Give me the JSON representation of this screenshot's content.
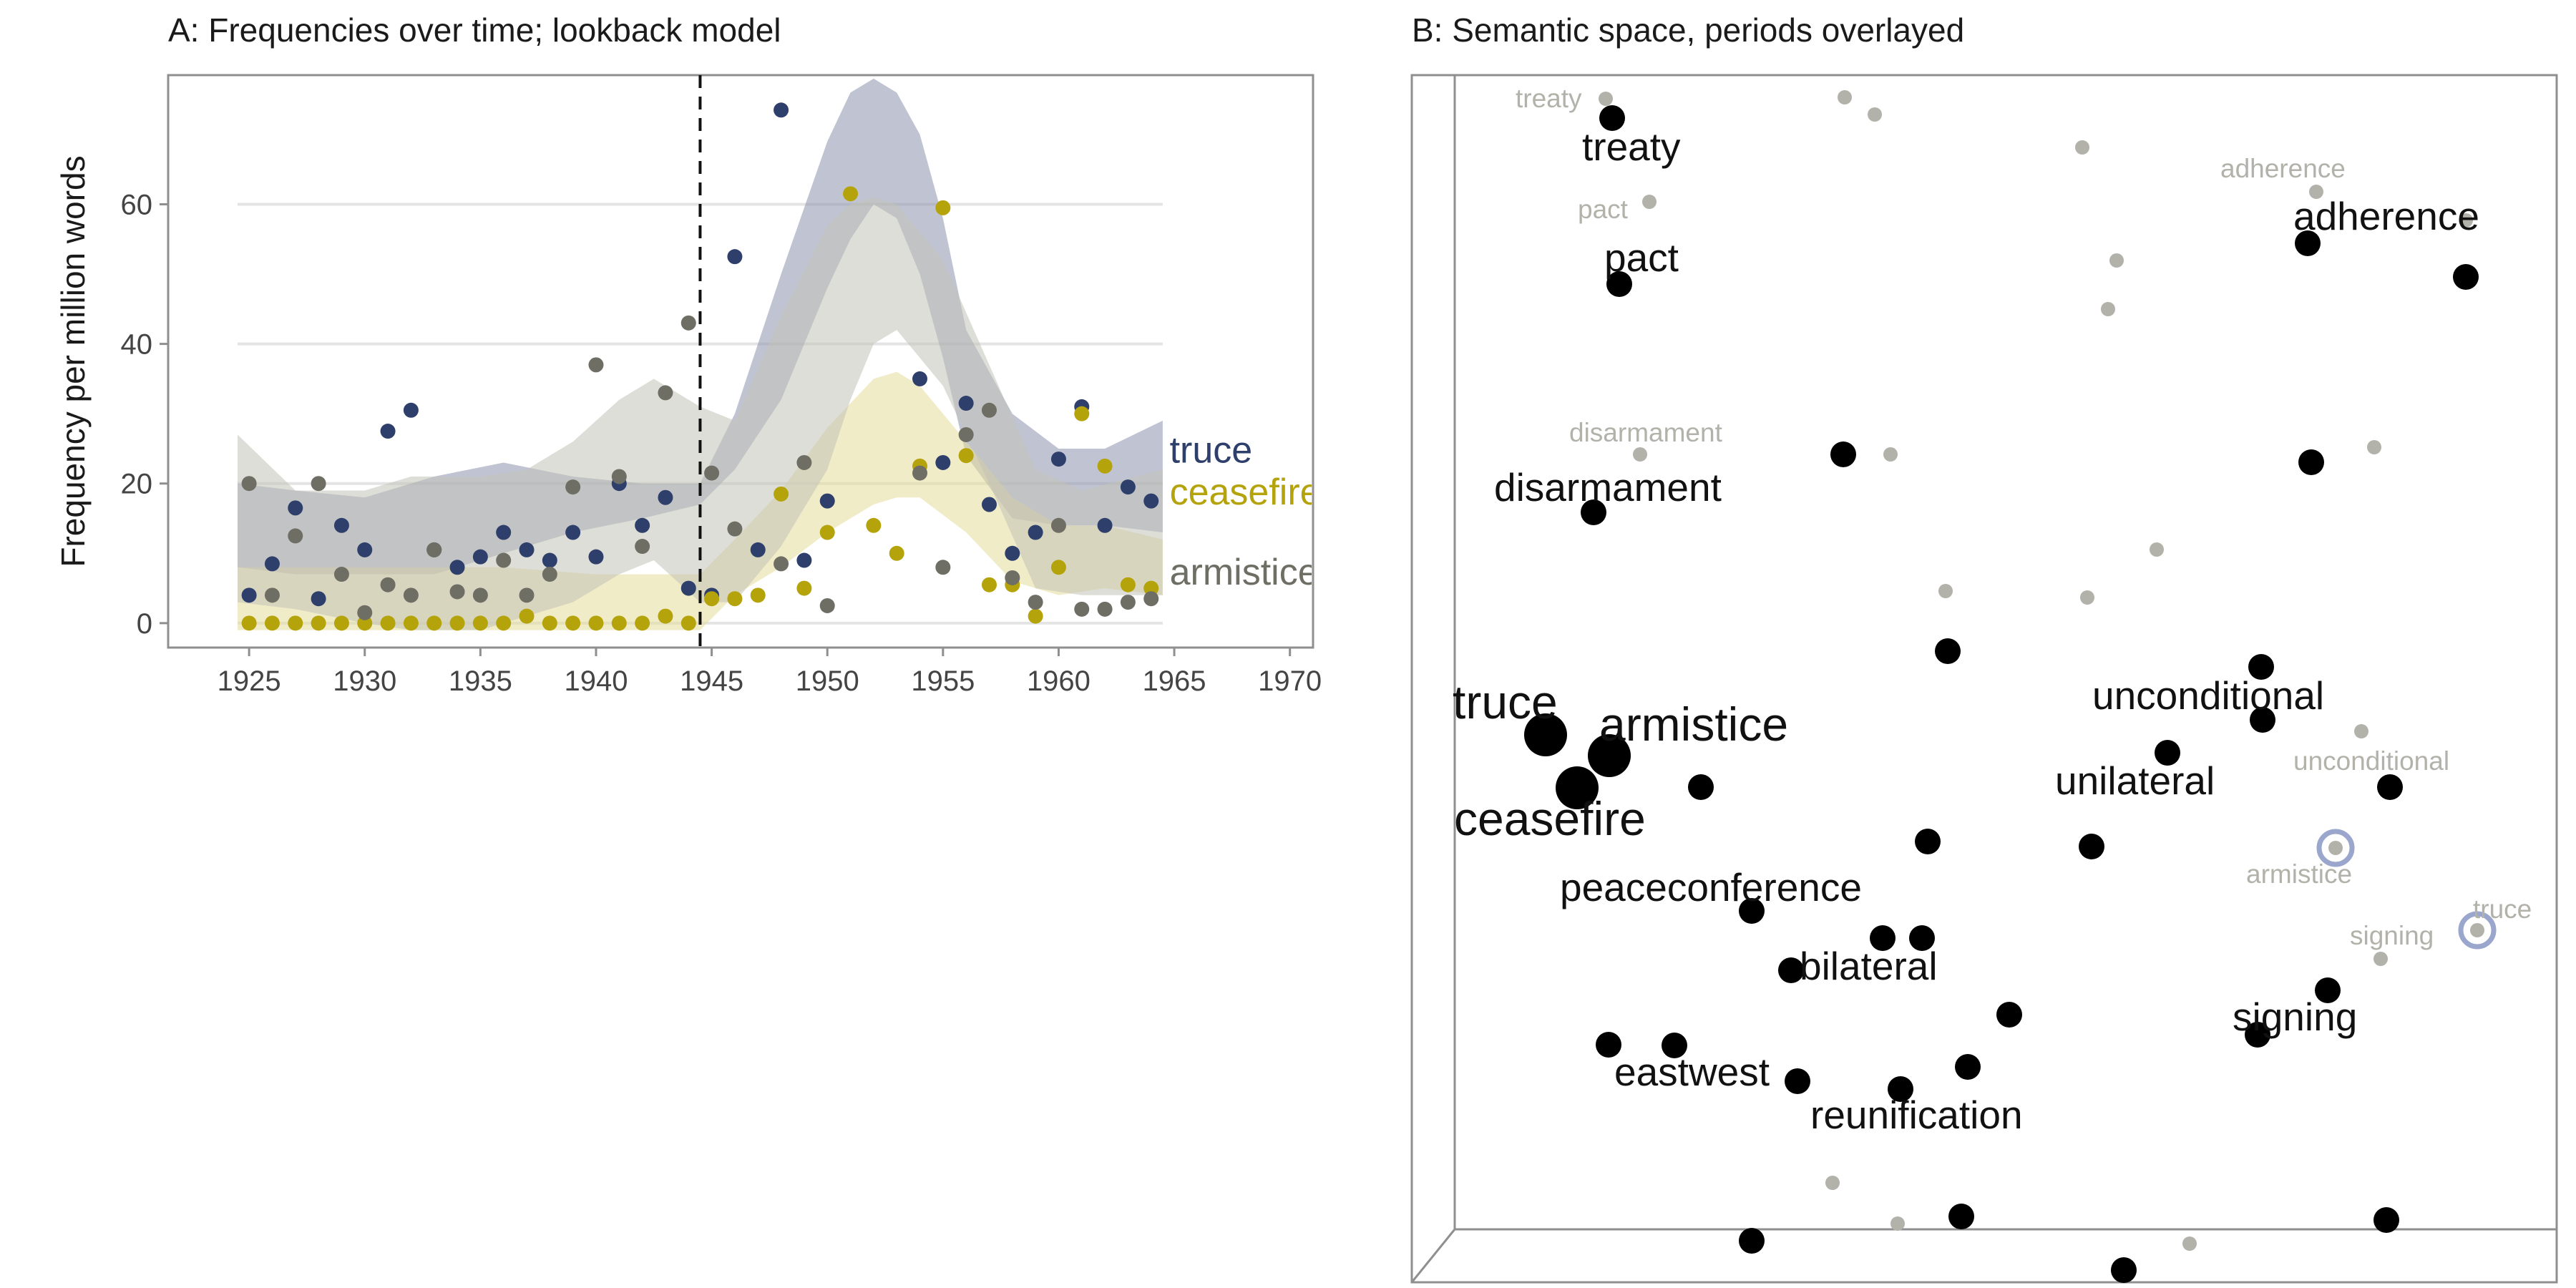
{
  "chart_data": [
    {
      "panel": "A",
      "type": "scatter",
      "title": "A: Frequencies over time; lookback model",
      "xlabel": "",
      "ylabel": "Frequency per million words",
      "xlim": [
        1921.5,
        1971
      ],
      "ylim": [
        -3.5,
        78.5
      ],
      "xticks": [
        1925,
        1930,
        1935,
        1940,
        1945,
        1950,
        1955,
        1960,
        1965,
        1970
      ],
      "yticks": [
        0,
        20,
        40,
        60
      ],
      "grid": true,
      "reference_line_x": 1944.5,
      "legend": "direct labels at right",
      "series": [
        {
          "name": "truce",
          "color": "#2e3f6b",
          "band_color": "#8c94ad",
          "points": [
            [
              1925,
              4
            ],
            [
              1926,
              8.5
            ],
            [
              1927,
              16.5
            ],
            [
              1928,
              3.5
            ],
            [
              1929,
              14
            ],
            [
              1930,
              10.5
            ],
            [
              1931,
              27.5
            ],
            [
              1932,
              30.5
            ],
            [
              1933,
              10.5
            ],
            [
              1934,
              8
            ],
            [
              1935,
              9.5
            ],
            [
              1936,
              13
            ],
            [
              1937,
              10.5
            ],
            [
              1938,
              9
            ],
            [
              1939,
              13
            ],
            [
              1940,
              9.5
            ],
            [
              1941,
              20
            ],
            [
              1942,
              14
            ],
            [
              1943,
              18
            ],
            [
              1944,
              5
            ],
            [
              1945,
              4
            ],
            [
              1946,
              52.5
            ],
            [
              1947,
              10.5
            ],
            [
              1948,
              73.5
            ],
            [
              1949,
              9
            ],
            [
              1950,
              17.5
            ],
            [
              1954,
              35
            ],
            [
              1955,
              23
            ],
            [
              1956,
              31.5
            ],
            [
              1957,
              17
            ],
            [
              1958,
              10
            ],
            [
              1959,
              13
            ],
            [
              1960,
              23.5
            ],
            [
              1961,
              31
            ],
            [
              1962,
              14
            ],
            [
              1963,
              19.5
            ],
            [
              1964,
              17.5
            ]
          ],
          "band": {
            "x": [
              1924.5,
              1927,
              1930,
              1933,
              1936,
              1939,
              1942,
              1944.5,
              1946,
              1948,
              1950,
              1951,
              1952,
              1953,
              1954,
              1955,
              1956,
              1958,
              1960,
              1962,
              1964.5
            ],
            "lower": [
              8,
              7,
              7,
              7,
              10,
              13,
              15,
              17,
              22,
              32,
              48,
              55,
              60,
              58,
              50,
              38,
              24,
              15,
              14,
              14,
              13
            ],
            "upper": [
              20,
              19,
              18,
              21,
              23,
              21,
              20,
              20,
              30,
              50,
              69,
              76,
              78,
              76,
              70,
              58,
              42,
              30,
              25,
              25,
              29
            ]
          }
        },
        {
          "name": "ceasefire",
          "color": "#b5a30c",
          "band_color": "#e5dc9b",
          "points": [
            [
              1925,
              0
            ],
            [
              1926,
              0
            ],
            [
              1927,
              0
            ],
            [
              1928,
              0
            ],
            [
              1929,
              0
            ],
            [
              1930,
              0
            ],
            [
              1931,
              0
            ],
            [
              1932,
              0
            ],
            [
              1933,
              0
            ],
            [
              1934,
              0
            ],
            [
              1935,
              0
            ],
            [
              1936,
              0
            ],
            [
              1937,
              1
            ],
            [
              1938,
              0
            ],
            [
              1939,
              0
            ],
            [
              1940,
              0
            ],
            [
              1941,
              0
            ],
            [
              1942,
              0
            ],
            [
              1943,
              1
            ],
            [
              1944,
              0
            ],
            [
              1945,
              3.5
            ],
            [
              1946,
              3.5
            ],
            [
              1947,
              4
            ],
            [
              1948,
              18.5
            ],
            [
              1949,
              5
            ],
            [
              1950,
              13
            ],
            [
              1951,
              61.5
            ],
            [
              1952,
              14
            ],
            [
              1953,
              10
            ],
            [
              1954,
              22.5
            ],
            [
              1955,
              59.5
            ],
            [
              1956,
              24
            ],
            [
              1957,
              5.5
            ],
            [
              1958,
              5.5
            ],
            [
              1959,
              1
            ],
            [
              1960,
              8
            ],
            [
              1961,
              30
            ],
            [
              1962,
              22.5
            ],
            [
              1963,
              5.5
            ],
            [
              1964,
              5
            ]
          ],
          "band": {
            "x": [
              1924.5,
              1928,
              1932,
              1936,
              1940,
              1943,
              1944.5,
              1946,
              1948,
              1950,
              1952,
              1953,
              1954,
              1956,
              1958,
              1960,
              1962,
              1964.5
            ],
            "lower": [
              -1,
              -1,
              -1,
              -1,
              -1,
              -1,
              -1,
              4,
              8,
              13,
              17,
              18,
              18,
              13,
              6,
              4,
              5,
              4
            ],
            "upper": [
              8,
              8,
              8,
              8,
              7,
              7,
              7,
              12,
              19,
              28,
              35,
              36,
              34,
              26,
              18,
              14,
              14,
              12
            ]
          }
        },
        {
          "name": "armistice",
          "color": "#6e6e64",
          "band_color": "#c2c2b8",
          "points": [
            [
              1925,
              20
            ],
            [
              1926,
              4
            ],
            [
              1927,
              12.5
            ],
            [
              1928,
              20
            ],
            [
              1929,
              7
            ],
            [
              1930,
              1.5
            ],
            [
              1931,
              5.5
            ],
            [
              1932,
              4
            ],
            [
              1933,
              10.5
            ],
            [
              1934,
              4.5
            ],
            [
              1935,
              4
            ],
            [
              1936,
              9
            ],
            [
              1937,
              4
            ],
            [
              1938,
              7
            ],
            [
              1939,
              19.5
            ],
            [
              1940,
              37
            ],
            [
              1941,
              21
            ],
            [
              1942,
              11
            ],
            [
              1943,
              33
            ],
            [
              1944,
              43
            ],
            [
              1945,
              21.5
            ],
            [
              1946,
              13.5
            ],
            [
              1948,
              8.5
            ],
            [
              1949,
              23
            ],
            [
              1950,
              2.5
            ],
            [
              1954,
              21.5
            ],
            [
              1955,
              8
            ],
            [
              1956,
              27
            ],
            [
              1957,
              30.5
            ],
            [
              1958,
              6.5
            ],
            [
              1959,
              3
            ],
            [
              1960,
              14
            ],
            [
              1961,
              2
            ],
            [
              1962,
              2
            ],
            [
              1963,
              3
            ],
            [
              1964,
              3.5
            ]
          ],
          "band": {
            "x": [
              1924.5,
              1927,
              1930,
              1932,
              1935,
              1937,
              1939,
              1941,
              1942.5,
              1944.5,
              1946,
              1948,
              1950,
              1951,
              1952,
              1953,
              1955,
              1957,
              1959,
              1961,
              1964.5
            ],
            "lower": [
              3,
              2,
              0,
              -1,
              -1,
              1,
              3,
              7,
              9,
              3,
              3,
              11,
              22,
              32,
              40,
              42,
              34,
              20,
              5,
              4,
              4
            ],
            "upper": [
              27,
              19,
              19,
              21,
              21,
              22,
              26,
              32,
              35,
              31,
              29,
              44,
              57,
              60,
              61,
              60,
              52,
              37,
              22,
              19,
              22
            ]
          }
        }
      ]
    },
    {
      "panel": "B",
      "type": "scatter",
      "title": "B: Semantic space, periods overlayed",
      "xlabel": "",
      "ylabel": "",
      "labels_current": [
        "treaty",
        "pact",
        "adherence",
        "disarmament",
        "unconditional",
        "truce",
        "armistice",
        "unilateral",
        "ceasefire",
        "peaceconference",
        "bilateral",
        "signing",
        "eastwest",
        "reunification"
      ],
      "labels_past": [
        "treaty",
        "pact",
        "adherence",
        "disarmament",
        "unconditional",
        "armistice",
        "signing",
        "truce"
      ],
      "highlight_color": "#9aa6cc"
    }
  ]
}
